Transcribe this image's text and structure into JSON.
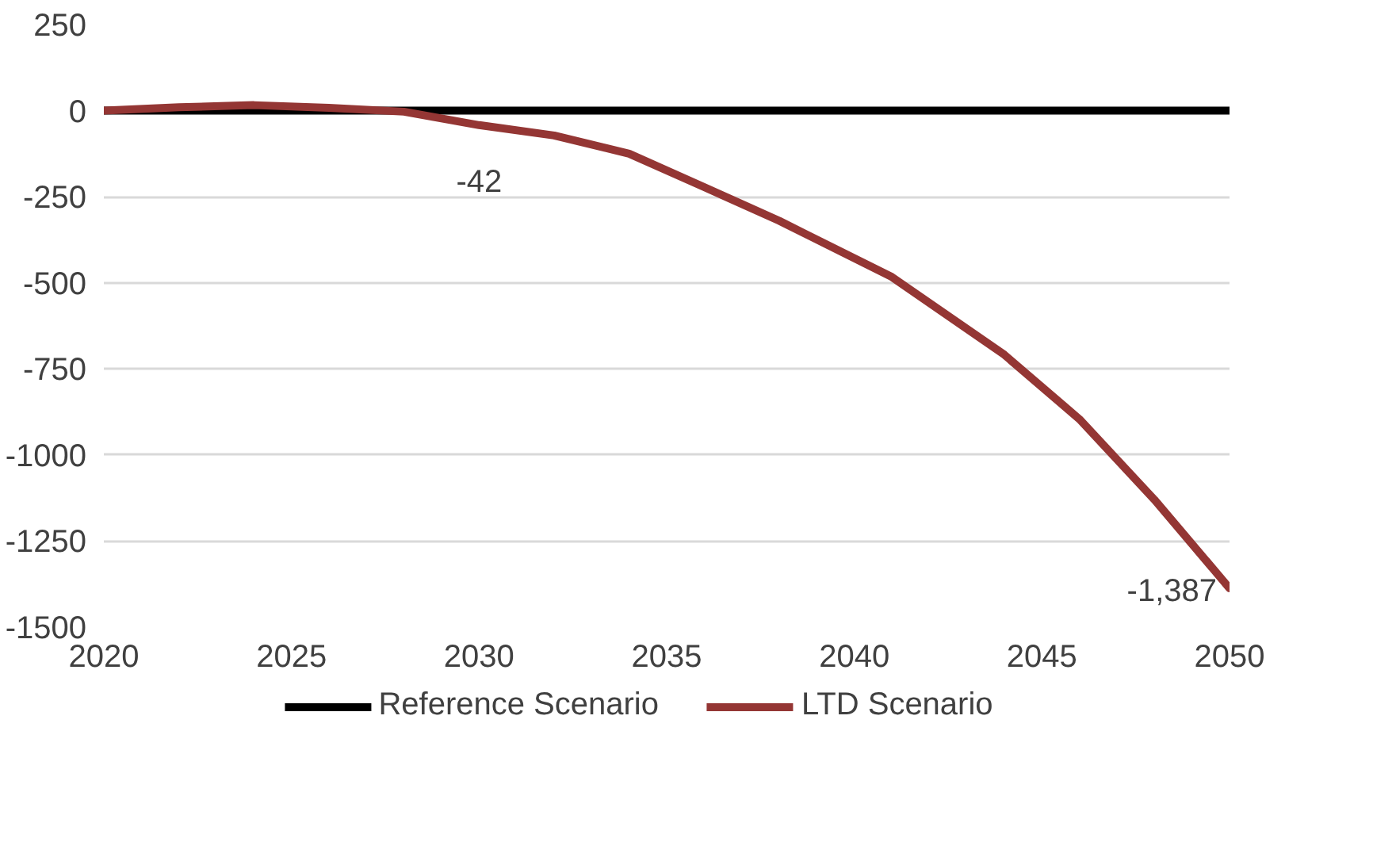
{
  "chart_data": {
    "type": "line",
    "x": [
      2020,
      2022,
      2024,
      2026,
      2028,
      2030,
      2032,
      2034,
      2036,
      2038,
      2041,
      2044,
      2046,
      2048,
      2050
    ],
    "series": [
      {
        "name": "Reference Scenario",
        "color": "#000000",
        "values": [
          0,
          0,
          0,
          0,
          0,
          0,
          0,
          0,
          0,
          0,
          0,
          0,
          0,
          0,
          0
        ]
      },
      {
        "name": "LTD Scenario",
        "color": "#943634",
        "values": [
          0,
          10,
          16,
          8,
          -3,
          -42,
          -72,
          -125,
          -222,
          -320,
          -483,
          -709,
          -896,
          -1130,
          -1387
        ],
        "value_labels": [
          null,
          null,
          null,
          null,
          null,
          "-42",
          null,
          null,
          null,
          null,
          null,
          null,
          null,
          null,
          "-1,387"
        ]
      }
    ],
    "xlim": [
      2020,
      2050
    ],
    "xticks": [
      2020,
      2025,
      2030,
      2035,
      2040,
      2045,
      2050
    ],
    "ylim": [
      -1500,
      250
    ],
    "yticks": [
      250,
      0,
      -250,
      -500,
      -750,
      -1000,
      -1250,
      -1500
    ],
    "grid": "y",
    "legend": "bottom",
    "marker": "none",
    "line_style": "solid"
  }
}
